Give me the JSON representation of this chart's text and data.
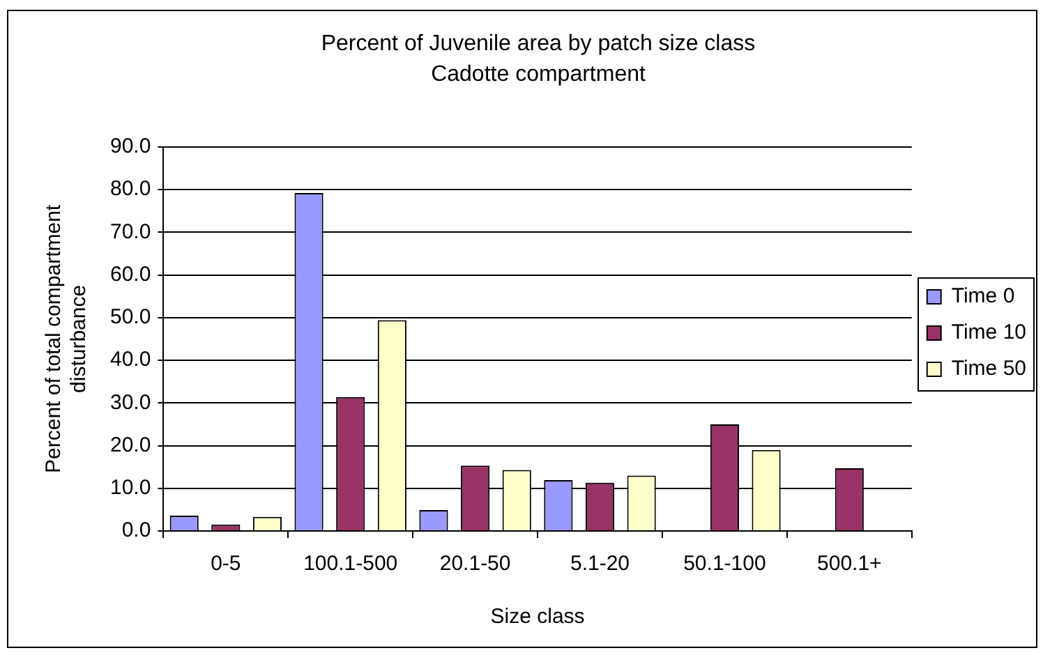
{
  "chart_data": {
    "type": "bar",
    "title": "Percent of Juvenile area by patch size class",
    "subtitle": "Cadotte compartment",
    "xlabel": "Size class",
    "ylabel": "Percent of total compartment disturbance",
    "categories": [
      "0-5",
      "100.1-500",
      "20.1-50",
      "5.1-20",
      "50.1-100",
      "500.1+"
    ],
    "series": [
      {
        "name": "Time 0",
        "color": "#9999ff",
        "values": [
          3.6,
          79.2,
          4.9,
          11.9,
          null,
          null
        ]
      },
      {
        "name": "Time 10",
        "color": "#993366",
        "values": [
          1.5,
          31.4,
          15.3,
          11.3,
          25.0,
          14.7
        ]
      },
      {
        "name": "Time 50",
        "color": "#ffffcc",
        "values": [
          3.3,
          49.4,
          14.3,
          13.0,
          19.0,
          null
        ]
      }
    ],
    "ylim": [
      0,
      90
    ],
    "yticks": [
      {
        "value": 0,
        "label": "0.0"
      },
      {
        "value": 10,
        "label": "10.0"
      },
      {
        "value": 20,
        "label": "20.0"
      },
      {
        "value": 30,
        "label": "30.0"
      },
      {
        "value": 40,
        "label": "40.0"
      },
      {
        "value": 50,
        "label": "50.0"
      },
      {
        "value": 60,
        "label": "60.0"
      },
      {
        "value": 70,
        "label": "70.0"
      },
      {
        "value": 80,
        "label": "80.0"
      },
      {
        "value": 90,
        "label": "90.0"
      }
    ],
    "grid": "y",
    "legend": "right"
  }
}
